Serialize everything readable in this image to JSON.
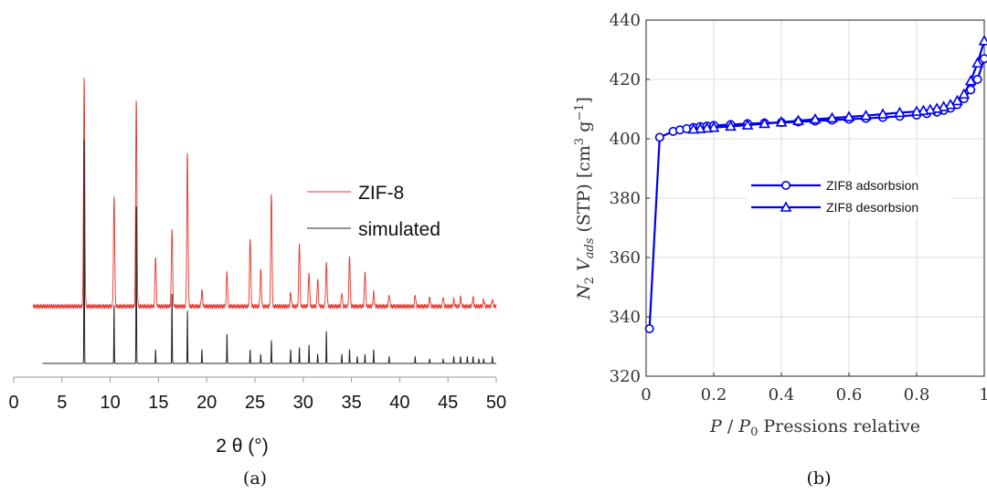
{
  "chart_data": [
    {
      "type": "line",
      "xlabel": "2 θ (°)",
      "ylabel": "",
      "xlim": [
        0,
        50
      ],
      "xticks": [
        "0",
        "5",
        "10",
        "15",
        "20",
        "25",
        "30",
        "35",
        "40",
        "45",
        "50"
      ],
      "caption": "(a)",
      "legend_position": "right",
      "grid": false,
      "series": [
        {
          "name": "ZIF-8",
          "color": "#e8322b",
          "baseline": 0.25,
          "x_range": [
            2,
            50
          ],
          "peaks": [
            [
              7.3,
              1.0
            ],
            [
              10.4,
              0.48
            ],
            [
              12.7,
              0.9
            ],
            [
              14.7,
              0.22
            ],
            [
              16.4,
              0.34
            ],
            [
              18.0,
              0.67
            ],
            [
              19.5,
              0.07
            ],
            [
              22.1,
              0.15
            ],
            [
              24.5,
              0.3
            ],
            [
              25.6,
              0.16
            ],
            [
              26.7,
              0.5
            ],
            [
              28.7,
              0.06
            ],
            [
              29.6,
              0.28
            ],
            [
              30.6,
              0.15
            ],
            [
              31.5,
              0.12
            ],
            [
              32.4,
              0.19
            ],
            [
              34.0,
              0.06
            ],
            [
              34.8,
              0.22
            ],
            [
              36.4,
              0.15
            ],
            [
              37.3,
              0.06
            ],
            [
              38.9,
              0.05
            ],
            [
              41.6,
              0.05
            ],
            [
              43.1,
              0.04
            ],
            [
              44.5,
              0.04
            ],
            [
              45.6,
              0.03
            ],
            [
              46.3,
              0.04
            ],
            [
              47.6,
              0.04
            ],
            [
              48.7,
              0.03
            ],
            [
              49.6,
              0.03
            ]
          ]
        },
        {
          "name": "simulated",
          "color": "#222222",
          "baseline": 0.0,
          "x_range": [
            3,
            50
          ],
          "peaks": [
            [
              7.3,
              1.0
            ],
            [
              10.4,
              0.26
            ],
            [
              12.7,
              0.7
            ],
            [
              14.7,
              0.06
            ],
            [
              16.4,
              0.31
            ],
            [
              18.0,
              0.23
            ],
            [
              19.5,
              0.06
            ],
            [
              22.1,
              0.13
            ],
            [
              24.5,
              0.06
            ],
            [
              25.6,
              0.04
            ],
            [
              26.7,
              0.1
            ],
            [
              28.7,
              0.06
            ],
            [
              29.6,
              0.07
            ],
            [
              30.6,
              0.08
            ],
            [
              31.5,
              0.04
            ],
            [
              32.4,
              0.14
            ],
            [
              34.0,
              0.04
            ],
            [
              34.8,
              0.06
            ],
            [
              35.6,
              0.03
            ],
            [
              36.4,
              0.04
            ],
            [
              37.3,
              0.06
            ],
            [
              38.9,
              0.03
            ],
            [
              41.6,
              0.03
            ],
            [
              43.1,
              0.02
            ],
            [
              44.5,
              0.02
            ],
            [
              45.6,
              0.03
            ],
            [
              46.3,
              0.03
            ],
            [
              47.0,
              0.03
            ],
            [
              47.6,
              0.03
            ],
            [
              48.2,
              0.02
            ],
            [
              48.7,
              0.02
            ],
            [
              49.6,
              0.03
            ]
          ]
        }
      ]
    },
    {
      "type": "line",
      "xlabel": "P / P₀ Pressions relative",
      "ylabel": "N₂ Vads (STP) [cm³ g⁻¹]",
      "xlim": [
        0,
        1
      ],
      "ylim": [
        320,
        440
      ],
      "xticks": [
        "0",
        "0.2",
        "0.4",
        "0.6",
        "0.8",
        "1"
      ],
      "yticks": [
        "320",
        "340",
        "360",
        "380",
        "400",
        "420",
        "440"
      ],
      "caption": "(b)",
      "legend_position": "center-right",
      "grid": true,
      "series": [
        {
          "name": "ZIF8 adsorbsion",
          "marker": "circle",
          "color": "#0000ee",
          "x": [
            0.01,
            0.04,
            0.08,
            0.1,
            0.12,
            0.14,
            0.16,
            0.18,
            0.2,
            0.25,
            0.3,
            0.35,
            0.4,
            0.45,
            0.5,
            0.55,
            0.6,
            0.65,
            0.7,
            0.75,
            0.8,
            0.83,
            0.86,
            0.88,
            0.9,
            0.92,
            0.94,
            0.96,
            0.98,
            1.0
          ],
          "y": [
            336,
            400.5,
            402.5,
            403.0,
            403.4,
            403.8,
            404.1,
            404.3,
            404.5,
            404.8,
            405.1,
            405.3,
            405.5,
            405.7,
            406.0,
            406.3,
            406.6,
            406.9,
            407.2,
            407.6,
            408.0,
            408.5,
            409.0,
            409.6,
            410.3,
            411.5,
            413.5,
            416.5,
            420.0,
            427.0
          ]
        },
        {
          "name": "ZIF8 desorbsion",
          "marker": "triangle",
          "color": "#0000ee",
          "x": [
            1.0,
            0.98,
            0.96,
            0.94,
            0.92,
            0.9,
            0.88,
            0.86,
            0.84,
            0.82,
            0.8,
            0.75,
            0.7,
            0.65,
            0.6,
            0.55,
            0.5,
            0.45,
            0.4,
            0.35,
            0.3,
            0.25,
            0.2,
            0.18,
            0.16,
            0.14
          ],
          "y": [
            433,
            425.5,
            419.5,
            415.0,
            412.8,
            411.5,
            410.8,
            410.2,
            409.8,
            409.5,
            409.2,
            408.8,
            408.3,
            407.8,
            407.4,
            407.0,
            406.6,
            406.1,
            405.6,
            405.1,
            404.6,
            404.2,
            403.8,
            403.6,
            403.4,
            403.2
          ]
        }
      ]
    }
  ]
}
